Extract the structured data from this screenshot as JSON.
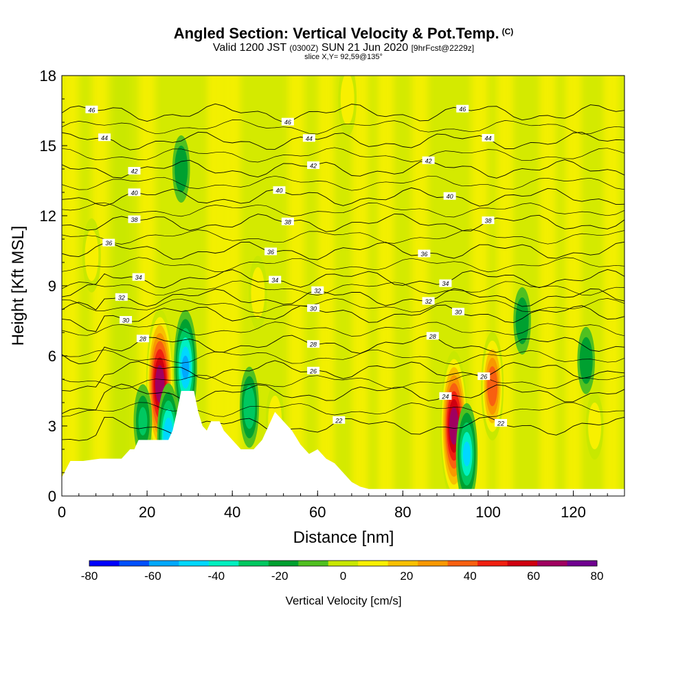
{
  "header": {
    "title": "Angled Section: Vertical Velocity & Pot.Temp.",
    "title_unit": "(C)",
    "valid_prefix": "Valid 1200 JST",
    "valid_utc": "(0300Z)",
    "valid_date": "SUN 21 Jun 2020",
    "forecast": "[9hrFcst@2229z]",
    "slice": "slice X,Y= 92,59@135°"
  },
  "chart_data": {
    "type": "heatmap",
    "xlabel": "Distance [nm]",
    "ylabel": "Height [Kft MSL]",
    "xlim": [
      0,
      132
    ],
    "ylim": [
      0,
      18
    ],
    "x_ticks": [
      "0",
      "20",
      "40",
      "60",
      "80",
      "100",
      "120"
    ],
    "y_ticks": [
      "0",
      "3",
      "6",
      "9",
      "12",
      "15",
      "18"
    ],
    "colorbar": {
      "title": "Vertical Velocity [cm/s]",
      "tick_labels": [
        "-80",
        "-60",
        "-40",
        "-20",
        "0",
        "20",
        "40",
        "60",
        "80"
      ],
      "levels": [
        -80,
        -70,
        -60,
        -50,
        -40,
        -30,
        -20,
        -10,
        0,
        10,
        20,
        30,
        40,
        50,
        60,
        70,
        80
      ],
      "colors": [
        "#0000ff",
        "#0050ff",
        "#00a8ff",
        "#00d8ff",
        "#00f0c0",
        "#00c860",
        "#00a030",
        "#50c020",
        "#c8e800",
        "#f8f000",
        "#f8c000",
        "#f89800",
        "#f86010",
        "#f02010",
        "#d00010",
        "#a00060",
        "#700090"
      ]
    },
    "updrafts_cm_s": [
      {
        "x": 23,
        "y": 4.8,
        "peak": 75
      },
      {
        "x": 92,
        "y": 3.0,
        "peak": 75
      },
      {
        "x": 101,
        "y": 4.7,
        "peak": 45
      },
      {
        "x": 7,
        "y": 10.3,
        "peak": 20
      },
      {
        "x": 46,
        "y": 8.7,
        "peak": 20
      },
      {
        "x": 67,
        "y": 17.0,
        "peak": 20
      },
      {
        "x": 50,
        "y": 3.2,
        "peak": 20
      },
      {
        "x": 125,
        "y": 3.0,
        "peak": 15
      }
    ],
    "downdrafts_cm_s": [
      {
        "x": 29,
        "y": 5.5,
        "peak": -50
      },
      {
        "x": 25,
        "y": 2.5,
        "peak": -45
      },
      {
        "x": 95,
        "y": 1.8,
        "peak": -40
      },
      {
        "x": 44,
        "y": 3.8,
        "peak": -25
      },
      {
        "x": 19,
        "y": 3.2,
        "peak": -20
      },
      {
        "x": 28,
        "y": 14.0,
        "peak": -15
      },
      {
        "x": 108,
        "y": 7.5,
        "peak": -15
      },
      {
        "x": 123,
        "y": 5.8,
        "peak": -15
      }
    ],
    "pot_temp_contours_C": [
      {
        "value": "46",
        "label_x": [
          7,
          53,
          94
        ]
      },
      {
        "value": "44",
        "label_x": [
          10,
          58,
          100
        ]
      },
      {
        "value": "42",
        "label_x": [
          17,
          59,
          86
        ]
      },
      {
        "value": "40",
        "label_x": [
          17,
          51,
          91
        ]
      },
      {
        "value": "38",
        "label_x": [
          17,
          53,
          100
        ]
      },
      {
        "value": "36",
        "label_x": [
          11,
          49,
          85
        ]
      },
      {
        "value": "34",
        "label_x": [
          18,
          50,
          90
        ]
      },
      {
        "value": "32",
        "label_x": [
          14,
          60,
          86
        ]
      },
      {
        "value": "30",
        "label_x": [
          15,
          59,
          93
        ]
      },
      {
        "value": "28",
        "label_x": [
          19,
          59,
          87
        ]
      },
      {
        "value": "26",
        "label_x": [
          59,
          99
        ]
      },
      {
        "value": "24",
        "label_x": [
          90
        ]
      },
      {
        "value": "22",
        "label_x": [
          65,
          103
        ]
      }
    ]
  }
}
